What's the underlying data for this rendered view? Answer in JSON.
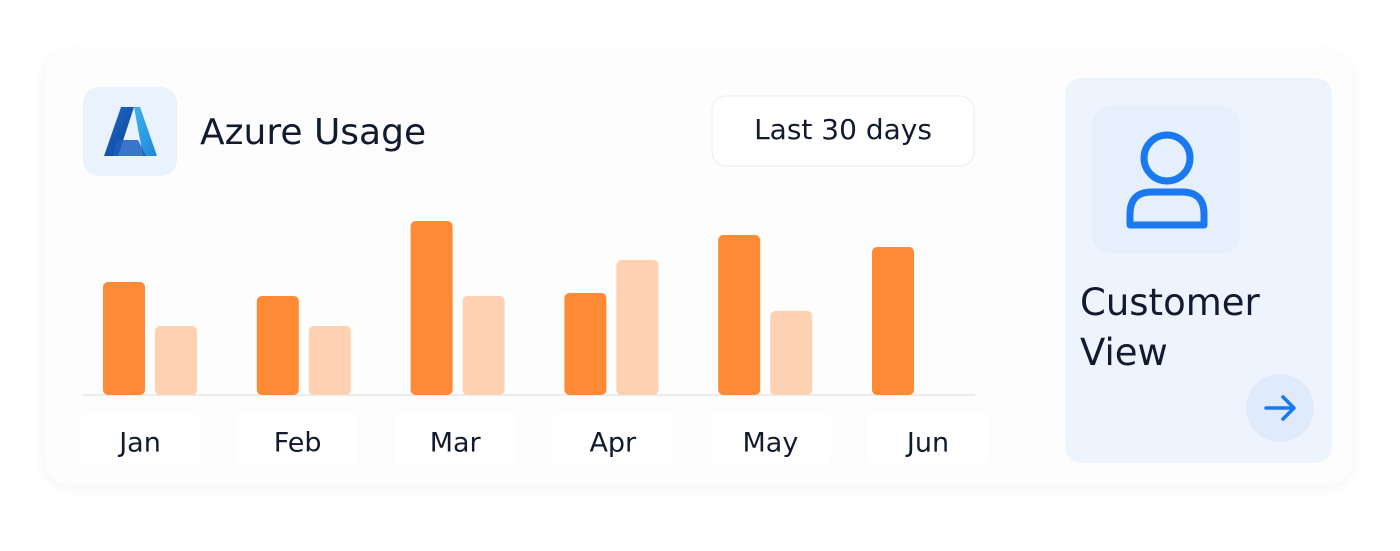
{
  "header": {
    "title": "Azure Usage",
    "range": "Last 30 days"
  },
  "chart_data": {
    "type": "bar",
    "categories": [
      "Jan",
      "Feb",
      "Mar",
      "Apr",
      "May",
      "Jun"
    ],
    "series": [
      {
        "color": "#ff8a35",
        "values": [
          113,
          99,
          174,
          102,
          160,
          148
        ]
      },
      {
        "color": "#fdd2b3",
        "values": [
          69,
          69,
          99,
          135,
          84,
          null
        ]
      }
    ]
  },
  "side_panel": {
    "title": "Customer View"
  }
}
